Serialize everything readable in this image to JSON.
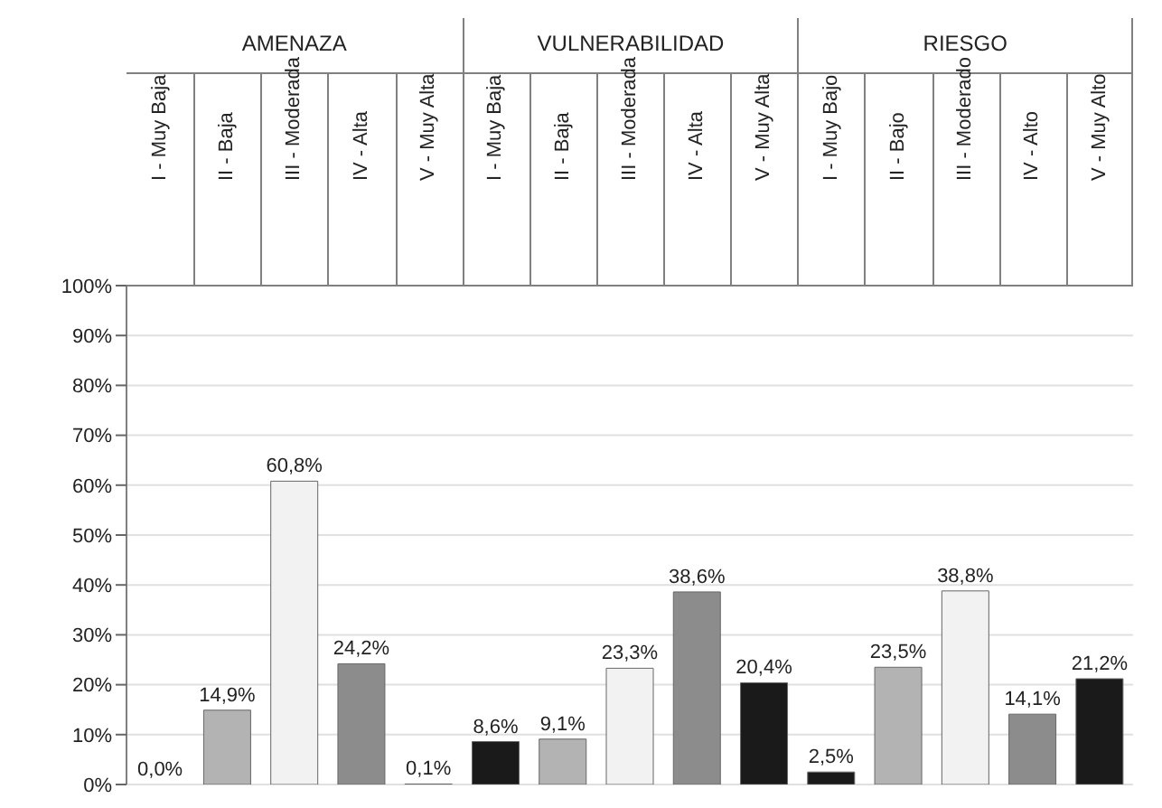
{
  "chart_data": {
    "type": "bar",
    "categories": [
      "I - Muy Baja",
      "II - Baja",
      "III - Moderada",
      "IV - Alta",
      "V - Muy Alta",
      "I - Muy Baja",
      "II - Baja",
      "III - Moderada",
      "IV - Alta",
      "V - Muy Alta",
      "I - Muy Bajo",
      "II - Bajo",
      "III - Moderado",
      "IV - Alto",
      "V - Muy Alto"
    ],
    "values": [
      0.0,
      14.9,
      60.8,
      24.2,
      0.1,
      8.6,
      9.1,
      23.3,
      38.6,
      20.4,
      2.5,
      23.5,
      38.8,
      14.1,
      21.2
    ],
    "colors": [
      "#1a1a1a",
      "#b3b3b3",
      "#f2f2f2",
      "#8c8c8c",
      "#1a1a1a",
      "#1a1a1a",
      "#b3b3b3",
      "#f2f2f2",
      "#8c8c8c",
      "#1a1a1a",
      "#1a1a1a",
      "#b3b3b3",
      "#f2f2f2",
      "#8c8c8c",
      "#1a1a1a"
    ],
    "value_labels": [
      "0,0%",
      "14,9%",
      "60,8%",
      "24,2%",
      "0,1%",
      "8,6%",
      "9,1%",
      "23,3%",
      "38,6%",
      "20,4%",
      "2,5%",
      "23,5%",
      "38,8%",
      "14,1%",
      "21,2%"
    ],
    "ylim": [
      0,
      100
    ],
    "yticks": [
      {
        "value": 0,
        "label": "0%"
      },
      {
        "value": 10,
        "label": "10%"
      },
      {
        "value": 20,
        "label": "20%"
      },
      {
        "value": 30,
        "label": "30%"
      },
      {
        "value": 40,
        "label": "40%"
      },
      {
        "value": 50,
        "label": "50%"
      },
      {
        "value": 60,
        "label": "60%"
      },
      {
        "value": 70,
        "label": "70%"
      },
      {
        "value": 80,
        "label": "80%"
      },
      {
        "value": 90,
        "label": "90%"
      },
      {
        "value": 100,
        "label": "100%"
      }
    ],
    "grid": "y",
    "annotations": [
      "AMENAZA",
      "VULNERABILIDAD",
      "RIESGO"
    ]
  }
}
